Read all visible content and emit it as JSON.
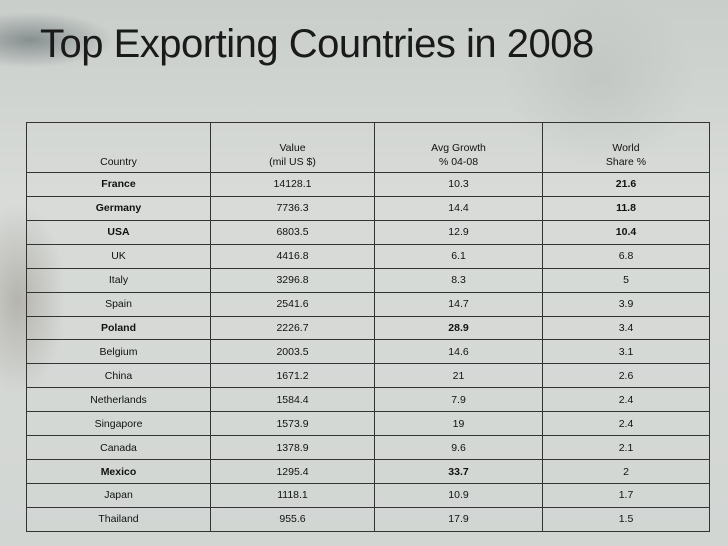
{
  "slide": {
    "title": "Top Exporting Countries in 2008"
  },
  "table": {
    "headers": {
      "country": "Country",
      "value_l1": "Value",
      "value_l2": "(mil US $)",
      "growth_l1": "Avg Growth",
      "growth_l2": "% 04-08",
      "share_l1": "World",
      "share_l2": "Share %"
    },
    "rows": [
      {
        "country": "France",
        "value": "14128.1",
        "growth": "10.3",
        "share": "21.6",
        "bold_country": true,
        "bold_growth": false,
        "bold_share": true
      },
      {
        "country": "Germany",
        "value": "7736.3",
        "growth": "14.4",
        "share": "11.8",
        "bold_country": true,
        "bold_growth": false,
        "bold_share": true
      },
      {
        "country": "USA",
        "value": "6803.5",
        "growth": "12.9",
        "share": "10.4",
        "bold_country": true,
        "bold_growth": false,
        "bold_share": true
      },
      {
        "country": "UK",
        "value": "4416.8",
        "growth": "6.1",
        "share": "6.8",
        "bold_country": false,
        "bold_growth": false,
        "bold_share": false
      },
      {
        "country": "Italy",
        "value": "3296.8",
        "growth": "8.3",
        "share": "5",
        "bold_country": false,
        "bold_growth": false,
        "bold_share": false
      },
      {
        "country": "Spain",
        "value": "2541.6",
        "growth": "14.7",
        "share": "3.9",
        "bold_country": false,
        "bold_growth": false,
        "bold_share": false
      },
      {
        "country": "Poland",
        "value": "2226.7",
        "growth": "28.9",
        "share": "3.4",
        "bold_country": true,
        "bold_growth": true,
        "bold_share": false
      },
      {
        "country": "Belgium",
        "value": "2003.5",
        "growth": "14.6",
        "share": "3.1",
        "bold_country": false,
        "bold_growth": false,
        "bold_share": false
      },
      {
        "country": "China",
        "value": "1671.2",
        "growth": "21",
        "share": "2.6",
        "bold_country": false,
        "bold_growth": false,
        "bold_share": false
      },
      {
        "country": "Netherlands",
        "value": "1584.4",
        "growth": "7.9",
        "share": "2.4",
        "bold_country": false,
        "bold_growth": false,
        "bold_share": false
      },
      {
        "country": "Singapore",
        "value": "1573.9",
        "growth": "19",
        "share": "2.4",
        "bold_country": false,
        "bold_growth": false,
        "bold_share": false
      },
      {
        "country": "Canada",
        "value": "1378.9",
        "growth": "9.6",
        "share": "2.1",
        "bold_country": false,
        "bold_growth": false,
        "bold_share": false
      },
      {
        "country": "Mexico",
        "value": "1295.4",
        "growth": "33.7",
        "share": "2",
        "bold_country": true,
        "bold_growth": true,
        "bold_share": false
      },
      {
        "country": "Japan",
        "value": "1118.1",
        "growth": "10.9",
        "share": "1.7",
        "bold_country": false,
        "bold_growth": false,
        "bold_share": false
      },
      {
        "country": "Thailand",
        "value": "955.6",
        "growth": "17.9",
        "share": "1.5",
        "bold_country": false,
        "bold_growth": false,
        "bold_share": false
      }
    ]
  }
}
